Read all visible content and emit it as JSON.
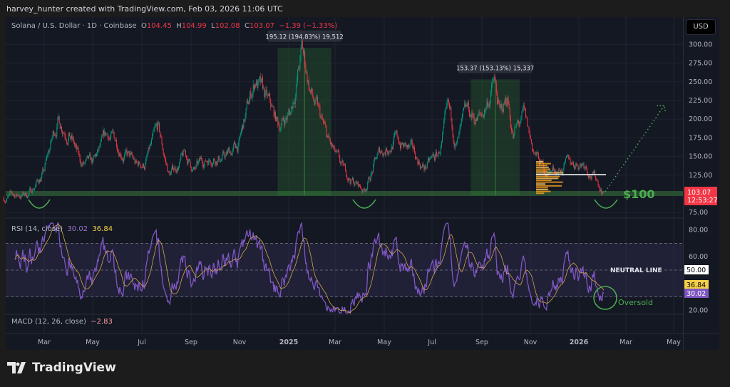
{
  "header": {
    "credit": "harvey_hunter created with TradingView.com, Feb 03, 2026 11:06 UTC"
  },
  "legend": {
    "symbol": "Solana / U.S. Dollar · 1D · Coinbase",
    "open_label": "O",
    "open": "104.45",
    "high_label": "H",
    "high": "104.99",
    "low_label": "L",
    "low": "102.08",
    "close_label": "C",
    "close": "103.07",
    "change": "−1.39 (−1.33%)"
  },
  "currency_button": "USD",
  "price_badge": {
    "price": "103.07",
    "countdown": "12:53:27",
    "color": "#f23645"
  },
  "annotations": {
    "range1": "195.12 (194.83%) 19,512",
    "range2": "153.37 (153.13%) 15,337",
    "support_label": "$100",
    "neutral_label": "NEUTRAL LINE",
    "oversold_label": "Oversold"
  },
  "rsi": {
    "label": "RSI (14, close)",
    "value": "30.02",
    "ma_value": "36.84",
    "neutral_badge": "50.00",
    "ticks": [
      "80.00",
      "60.00",
      "20.00"
    ],
    "line_color": "#7e57c2",
    "ma_color": "#d4a74a"
  },
  "macd": {
    "label": "MACD (12, 26, close)",
    "value": "−2.83"
  },
  "footer": {
    "brand": "TradingView"
  },
  "colors": {
    "up": "#089981",
    "down": "#f23645",
    "annotation": "#4caf50"
  },
  "chart_data": {
    "type": "candlestick",
    "title": "Solana / U.S. Dollar · 1D · Coinbase",
    "y_ticks": [
      "300.00",
      "275.00",
      "250.00",
      "225.00",
      "200.00",
      "175.00",
      "150.00",
      "125.00",
      "75.00"
    ],
    "ylim": [
      75,
      300
    ],
    "x_ticks": [
      "Mar",
      "May",
      "Jul",
      "Sep",
      "Nov",
      "2025",
      "Mar",
      "May",
      "Jul",
      "Sep",
      "Nov",
      "2026",
      "Mar",
      "May"
    ],
    "price_path": [
      [
        "2024-01-10",
        95
      ],
      [
        "2024-02-10",
        100
      ],
      [
        "2024-03-01",
        130
      ],
      [
        "2024-03-18",
        200
      ],
      [
        "2024-04-01",
        190
      ],
      [
        "2024-04-15",
        140
      ],
      [
        "2024-05-01",
        135
      ],
      [
        "2024-05-20",
        175
      ],
      [
        "2024-06-05",
        165
      ],
      [
        "2024-06-25",
        135
      ],
      [
        "2024-07-05",
        140
      ],
      [
        "2024-07-22",
        180
      ],
      [
        "2024-08-05",
        125
      ],
      [
        "2024-08-25",
        150
      ],
      [
        "2024-09-06",
        130
      ],
      [
        "2024-09-30",
        155
      ],
      [
        "2024-10-15",
        150
      ],
      [
        "2024-11-01",
        165
      ],
      [
        "2024-11-22",
        255
      ],
      [
        "2024-12-01",
        230
      ],
      [
        "2024-12-20",
        190
      ],
      [
        "2025-01-05",
        210
      ],
      [
        "2025-01-19",
        290
      ],
      [
        "2025-02-01",
        230
      ],
      [
        "2025-02-20",
        170
      ],
      [
        "2025-03-10",
        130
      ],
      [
        "2025-04-07",
        105
      ],
      [
        "2025-04-25",
        150
      ],
      [
        "2025-05-15",
        175
      ],
      [
        "2025-06-05",
        155
      ],
      [
        "2025-06-22",
        135
      ],
      [
        "2025-07-10",
        150
      ],
      [
        "2025-07-22",
        200
      ],
      [
        "2025-08-02",
        165
      ],
      [
        "2025-08-15",
        200
      ],
      [
        "2025-09-02",
        200
      ],
      [
        "2025-09-18",
        250
      ],
      [
        "2025-09-26",
        200
      ],
      [
        "2025-10-05",
        230
      ],
      [
        "2025-10-12",
        180
      ],
      [
        "2025-10-25",
        200
      ],
      [
        "2025-11-05",
        160
      ],
      [
        "2025-11-20",
        130
      ],
      [
        "2025-12-10",
        135
      ],
      [
        "2026-01-10",
        145
      ],
      [
        "2026-01-25",
        120
      ],
      [
        "2026-02-03",
        103.07
      ]
    ],
    "support_level": 100,
    "range_boxes": [
      {
        "start": "2024-12-20",
        "end": "2025-02-25",
        "low": 98,
        "high": 295,
        "label": "195.12 (194.83%) 19,512"
      },
      {
        "start": "2025-08-20",
        "end": "2025-10-20",
        "low": 98,
        "high": 253,
        "label": "153.37 (153.13%) 15,337"
      }
    ],
    "projection": {
      "from": [
        "2026-02-05",
        103
      ],
      "to": [
        "2026-04-20",
        218
      ]
    },
    "rsi_ylim": [
      20,
      80
    ],
    "rsi_levels": [
      70,
      50,
      30
    ]
  }
}
